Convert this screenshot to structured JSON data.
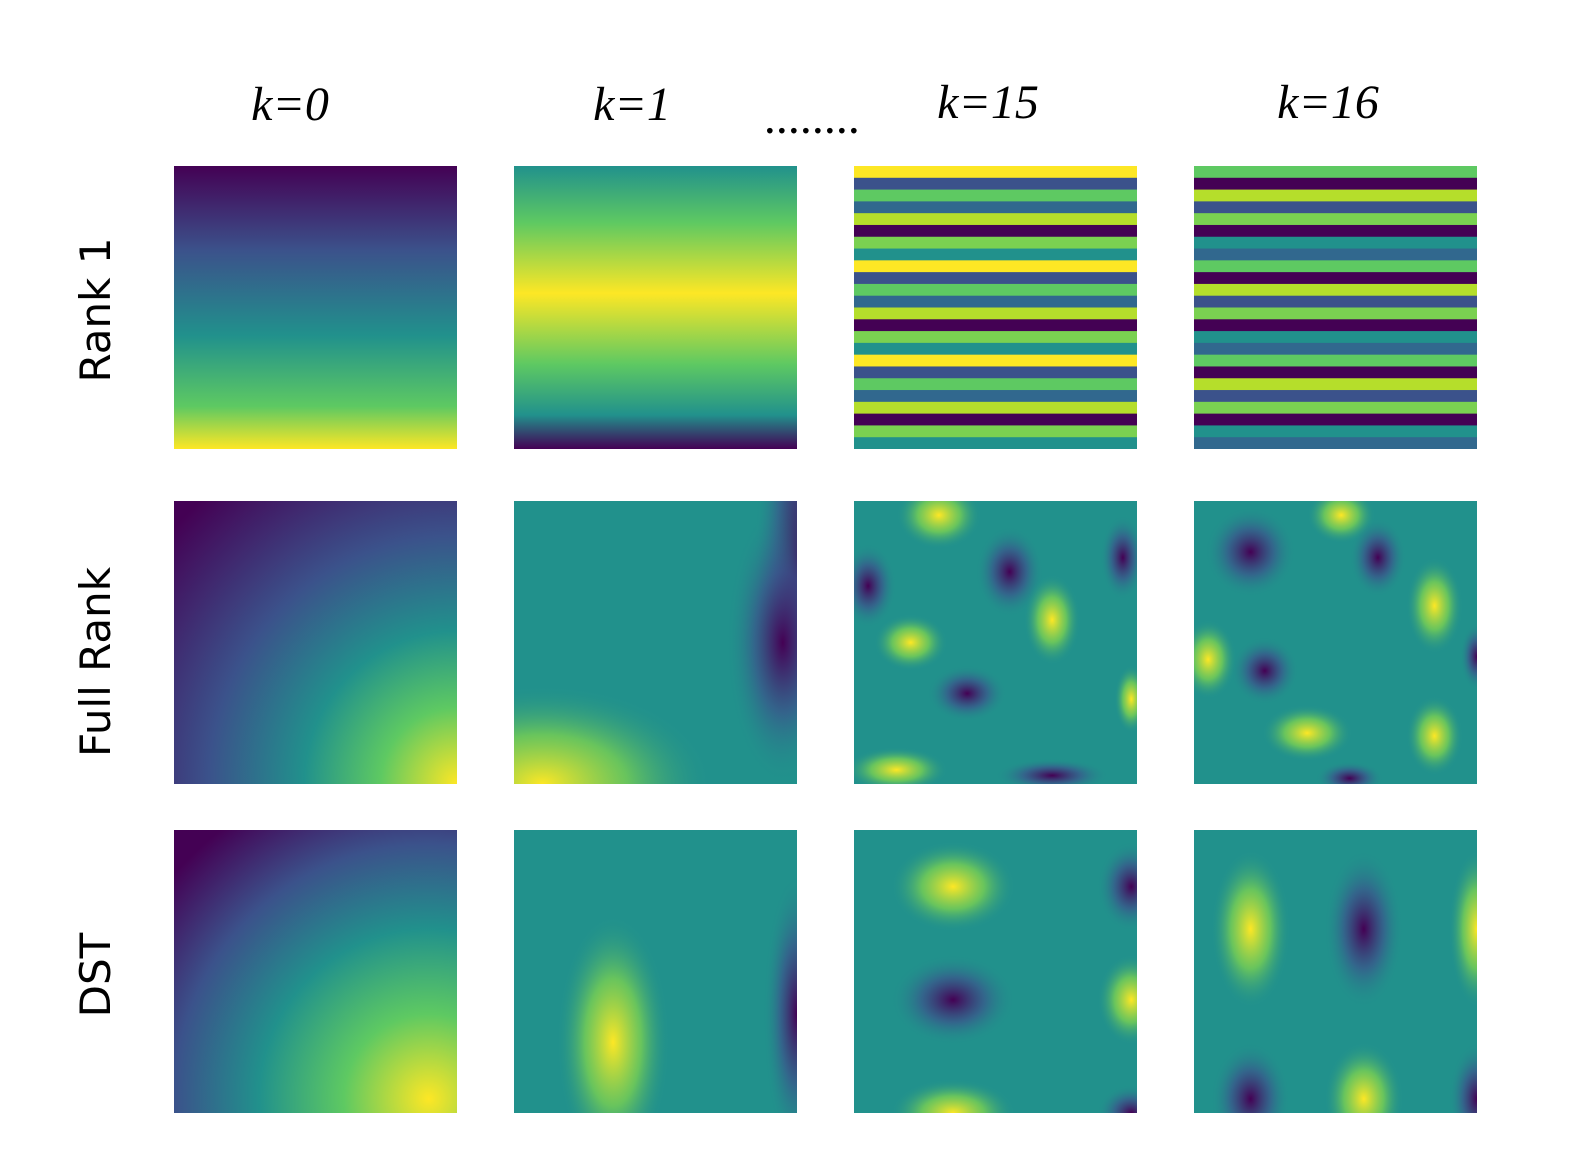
{
  "columns": [
    "k=0",
    "k=1",
    "k=15",
    "k=16"
  ],
  "ellipsis": "........",
  "rows": [
    "Rank 1",
    "Full Rank",
    "DST"
  ]
}
